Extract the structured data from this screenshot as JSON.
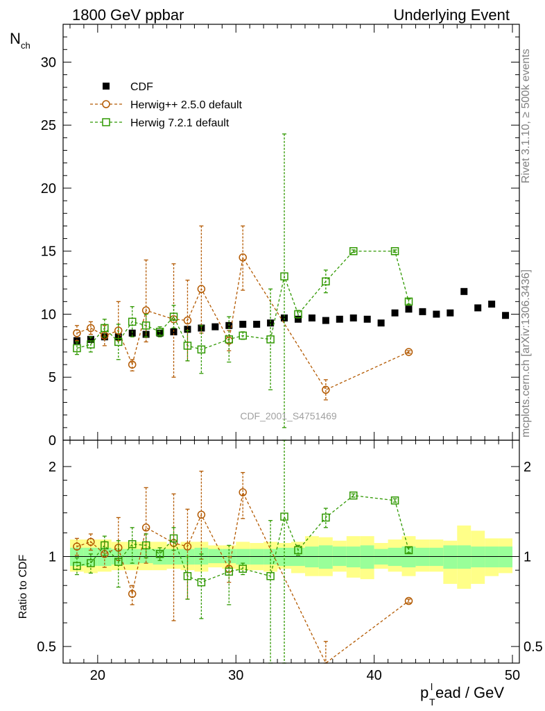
{
  "header": {
    "left": "1800 GeV ppbar",
    "right": "Underlying Event"
  },
  "side_labels": {
    "rivet": "Rivet 3.1.10, ≥ 500k events",
    "mcplots": "mcplots.cern.ch [arXiv:1306.3436]"
  },
  "colors": {
    "cdf": "#000000",
    "herwig_pp": "#b35900",
    "herwig_7": "#2f9800",
    "band_inner": "#99ff99",
    "band_outer": "#ffff88"
  },
  "chart_data": [
    {
      "id": "main",
      "type": "scatter",
      "analysis_label": "CDF_2001_S4751469",
      "ylabel": "N",
      "ylabel_sub": "ch",
      "xlim": [
        17.5,
        50.5
      ],
      "ylim": [
        0,
        33
      ],
      "yticks": [
        0,
        5,
        10,
        15,
        20,
        25,
        30
      ],
      "legend_position": "top-left",
      "series": [
        {
          "name": "CDF",
          "marker": "filled-square",
          "x": [
            18.5,
            19.5,
            20.5,
            21.5,
            22.5,
            23.5,
            24.5,
            25.5,
            26.5,
            27.5,
            28.5,
            29.5,
            30.5,
            31.5,
            32.5,
            33.5,
            34.5,
            35.5,
            36.5,
            37.5,
            38.5,
            39.5,
            40.5,
            41.5,
            42.5,
            43.5,
            44.5,
            45.5,
            46.5,
            47.5,
            48.5,
            49.5
          ],
          "y": [
            7.9,
            8.0,
            8.2,
            8.2,
            8.5,
            8.4,
            8.5,
            8.6,
            8.8,
            8.9,
            9.0,
            9.1,
            9.2,
            9.2,
            9.3,
            9.7,
            9.6,
            9.7,
            9.5,
            9.6,
            9.7,
            9.6,
            9.3,
            10.1,
            10.4,
            10.2,
            10.0,
            10.1,
            11.8,
            10.5,
            10.8,
            9.9
          ]
        },
        {
          "name": "Herwig++ 2.5.0 default",
          "marker": "open-circle",
          "x": [
            18.5,
            19.5,
            20.5,
            21.5,
            22.5,
            23.5,
            25.5,
            26.5,
            27.5,
            29.5,
            30.5,
            36.5,
            42.5
          ],
          "y": [
            8.5,
            8.9,
            8.3,
            8.7,
            6.0,
            10.3,
            9.6,
            9.5,
            12.0,
            7.9,
            14.5,
            4.0,
            7.0
          ],
          "err_low": [
            0.6,
            0.5,
            0.8,
            0.8,
            0.5,
            2.5,
            4.6,
            3.2,
            3.5,
            0.8,
            2.6,
            0.8,
            0.1
          ],
          "err_high": [
            0.6,
            0.5,
            0.8,
            2.3,
            0.4,
            4.0,
            4.4,
            3.2,
            5.0,
            0.8,
            2.5,
            0.8,
            0.1
          ]
        },
        {
          "name": "Herwig 7.2.1 default",
          "marker": "open-square",
          "x": [
            18.5,
            19.5,
            20.5,
            21.5,
            22.5,
            23.5,
            24.5,
            25.5,
            26.5,
            27.5,
            29.5,
            30.5,
            32.5,
            33.5,
            34.5,
            36.5,
            38.5,
            41.5,
            42.5
          ],
          "y": [
            7.3,
            7.6,
            8.9,
            7.8,
            9.4,
            9.1,
            8.6,
            9.8,
            7.5,
            7.2,
            8.0,
            8.3,
            8.0,
            13.0,
            10.0,
            12.6,
            15.0,
            15.0,
            11.0
          ],
          "err_low": [
            0.5,
            0.6,
            0.7,
            1.4,
            1.2,
            0.9,
            0.4,
            0.9,
            1.2,
            1.9,
            1.8,
            0.3,
            4.0,
            12.0,
            0.3,
            0.9,
            0.1,
            0.1,
            0.2
          ],
          "err_high": [
            0.5,
            0.6,
            0.7,
            1.4,
            1.2,
            0.9,
            0.4,
            0.9,
            1.2,
            1.9,
            1.8,
            0.3,
            4.0,
            11.3,
            0.3,
            0.9,
            0.1,
            0.1,
            0.2
          ]
        }
      ]
    },
    {
      "id": "ratio",
      "type": "scatter",
      "ylabel": "Ratio to CDF",
      "xlabel": "p",
      "xlabel_sub": "T",
      "xlabel_sup": "l",
      "xlabel_rest": "ead / GeV",
      "xlim": [
        17.5,
        50.5
      ],
      "ylim": [
        0.44,
        2.45
      ],
      "log_scale": true,
      "yticks": [
        0.5,
        1,
        2
      ],
      "xticks": [
        20,
        30,
        40,
        50
      ],
      "band": {
        "x_edges": [
          18,
          19,
          20,
          21,
          22,
          23,
          24,
          25,
          26,
          27,
          28,
          29,
          30,
          31,
          32,
          33,
          34,
          35,
          36,
          37,
          38,
          39,
          40,
          41,
          42,
          43,
          44,
          45,
          46,
          47,
          48,
          49,
          50
        ],
        "inner_low": [
          0.93,
          0.93,
          0.93,
          0.94,
          0.94,
          0.95,
          0.94,
          0.94,
          0.94,
          0.94,
          0.95,
          0.95,
          0.94,
          0.94,
          0.94,
          0.93,
          0.93,
          0.92,
          0.91,
          0.93,
          0.92,
          0.91,
          0.94,
          0.93,
          0.92,
          0.93,
          0.93,
          0.91,
          0.91,
          0.92,
          0.92,
          0.92
        ],
        "inner_high": [
          1.07,
          1.07,
          1.07,
          1.06,
          1.06,
          1.06,
          1.06,
          1.06,
          1.06,
          1.07,
          1.06,
          1.06,
          1.06,
          1.06,
          1.06,
          1.07,
          1.07,
          1.08,
          1.09,
          1.08,
          1.08,
          1.09,
          1.06,
          1.07,
          1.08,
          1.07,
          1.07,
          1.09,
          1.09,
          1.08,
          1.08,
          1.08
        ],
        "outer_low": [
          0.89,
          0.88,
          0.89,
          0.9,
          0.9,
          0.9,
          0.9,
          0.91,
          0.9,
          0.89,
          0.92,
          0.91,
          0.9,
          0.9,
          0.89,
          0.91,
          0.88,
          0.86,
          0.86,
          0.89,
          0.85,
          0.84,
          0.91,
          0.89,
          0.86,
          0.89,
          0.89,
          0.81,
          0.78,
          0.81,
          0.86,
          0.88
        ],
        "outer_high": [
          1.14,
          1.14,
          1.14,
          1.12,
          1.12,
          1.12,
          1.12,
          1.1,
          1.12,
          1.12,
          1.09,
          1.09,
          1.12,
          1.11,
          1.12,
          1.11,
          1.12,
          1.17,
          1.16,
          1.13,
          1.17,
          1.17,
          1.11,
          1.14,
          1.17,
          1.14,
          1.14,
          1.13,
          1.27,
          1.22,
          1.15,
          1.15
        ]
      },
      "series": [
        {
          "name": "Herwig++ 2.5.0 default",
          "marker": "open-circle",
          "x": [
            18.5,
            19.5,
            20.5,
            21.5,
            22.5,
            23.5,
            25.5,
            26.5,
            27.5,
            29.5,
            30.5,
            36.5,
            42.5
          ],
          "y": [
            1.08,
            1.12,
            1.02,
            1.07,
            0.75,
            1.25,
            1.11,
            1.08,
            1.38,
            0.91,
            1.64,
            0.42,
            0.71
          ],
          "err_low": [
            0.07,
            0.07,
            0.1,
            0.1,
            0.06,
            0.3,
            0.5,
            0.36,
            0.4,
            0.09,
            0.3,
            0.08,
            0.01
          ],
          "err_high": [
            0.07,
            0.07,
            0.1,
            0.28,
            0.05,
            0.45,
            0.51,
            0.36,
            0.55,
            0.09,
            0.27,
            0.1,
            0.01
          ]
        },
        {
          "name": "Herwig 7.2.1 default",
          "marker": "open-square",
          "x": [
            18.5,
            19.5,
            20.5,
            21.5,
            22.5,
            23.5,
            24.5,
            25.5,
            26.5,
            27.5,
            29.5,
            30.5,
            32.5,
            33.5,
            34.5,
            36.5,
            38.5,
            41.5,
            42.5
          ],
          "y": [
            0.93,
            0.95,
            1.09,
            0.96,
            1.1,
            1.09,
            1.02,
            1.15,
            0.86,
            0.82,
            0.89,
            0.91,
            0.86,
            1.36,
            1.05,
            1.35,
            1.6,
            1.54,
            1.05
          ],
          "err_low": [
            0.06,
            0.07,
            0.08,
            0.17,
            0.15,
            0.1,
            0.05,
            0.1,
            0.14,
            0.2,
            0.2,
            0.04,
            0.46,
            1.2,
            0.04,
            0.1,
            0.02,
            0.02,
            0.02
          ],
          "err_high": [
            0.06,
            0.07,
            0.08,
            0.17,
            0.15,
            0.1,
            0.05,
            0.1,
            0.14,
            0.2,
            0.2,
            0.04,
            0.46,
            1.2,
            0.04,
            0.1,
            0.02,
            0.02,
            0.02
          ]
        }
      ]
    }
  ]
}
